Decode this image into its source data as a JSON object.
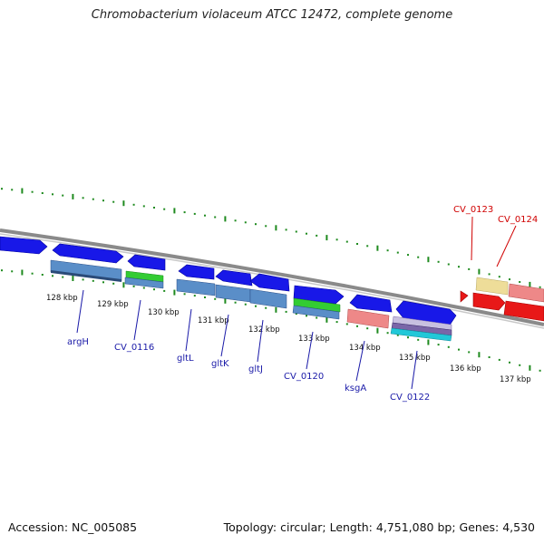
{
  "title": "Chromobacterium violaceum ATCC 12472, complete genome",
  "footer": {
    "accession": "Accession: NC_005085",
    "summary": "Topology: circular; Length: 4,751,080 bp; Genes: 4,530"
  },
  "colors": {
    "cds_forward": "#1818e8",
    "cds_reverse": "#e81818",
    "backbone": "#8a8a8a",
    "gc_skew_tick": "#1e8a1e",
    "cog_blue": "#5a8ec8",
    "cog_green": "#33cc33",
    "cog_salmon": "#ee8888",
    "cog_yellow": "#eedd99",
    "cog_cyan": "#22c8d8",
    "cog_purple": "#7a66a8",
    "label_forward": "#1a1aa8",
    "label_reverse": "#d00000"
  },
  "scale_ticks": [
    "128 kbp",
    "129 kbp",
    "130 kbp",
    "131 kbp",
    "132 kbp",
    "133 kbp",
    "134 kbp",
    "135 kbp",
    "136 kbp",
    "137 kbp"
  ],
  "gene_labels_forward": [
    "argH",
    "CV_0116",
    "gltL",
    "gltK",
    "gltJ",
    "CV_0120",
    "ksgA",
    "CV_0122"
  ],
  "gene_labels_reverse": [
    "CV_0123",
    "CV_0124"
  ]
}
